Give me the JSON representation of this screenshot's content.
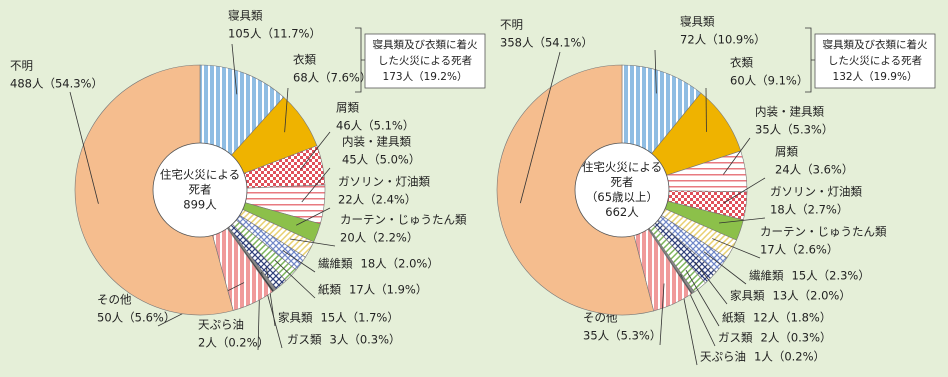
{
  "chart_data": [
    {
      "type": "pie",
      "center_label": [
        "住宅火災による",
        "死者",
        "899人"
      ],
      "annotation": [
        "寝具類及び衣類に着火",
        "した火災による死者",
        "173人（19.2%）"
      ],
      "categories": [
        "寝具類",
        "衣類",
        "屑類",
        "内装・建具類",
        "ガソリン・灯油類",
        "カーテン・じゅうたん類",
        "繊維類",
        "紙類",
        "家具類",
        "ガス類",
        "天ぷら油",
        "その他",
        "不明"
      ],
      "values": [
        105,
        68,
        46,
        45,
        22,
        20,
        18,
        17,
        15,
        3,
        2,
        50,
        488
      ],
      "value_labels": [
        "105人（11.7%）",
        "68人（7.6%）",
        "46人（5.1%）",
        "45人（5.0%）",
        "22人（2.4%）",
        "20人（2.2%）",
        "18人（2.0%）",
        "17人（1.9%）",
        "15人（1.7%）",
        "3人（0.3%）",
        "2人（0.2%）",
        "50人（5.6%）",
        "488人（54.3%）"
      ],
      "colors": [
        "#8fbde3",
        "#efb300",
        "#e0505a",
        "#e87a80",
        "#8cc04a",
        "#e8d070",
        "#6f86c8",
        "#7cb45a",
        "#2f3f7a",
        "#8a8a8a",
        "#333333",
        "#f09a9a",
        "#f5bd8e"
      ],
      "patterns": [
        "vstripe",
        "solid",
        "check",
        "hline",
        "solid",
        "diag",
        "crosshatch",
        "diag",
        "crosshatch",
        "solid",
        "solid",
        "vstripe",
        "solid"
      ]
    },
    {
      "type": "pie",
      "center_label": [
        "住宅火災による",
        "死者",
        "（65歳以上）",
        "662人"
      ],
      "annotation": [
        "寝具類及び衣類に着火",
        "した火災による死者",
        "132人（19.9%）"
      ],
      "categories": [
        "寝具類",
        "衣類",
        "内装・建具類",
        "屑類",
        "ガソリン・灯油類",
        "カーテン・じゅうたん類",
        "繊維類",
        "家具類",
        "紙類",
        "ガス類",
        "天ぷら油",
        "その他",
        "不明"
      ],
      "values": [
        72,
        60,
        35,
        24,
        18,
        17,
        15,
        13,
        12,
        2,
        1,
        35,
        358
      ],
      "value_labels": [
        "72人（10.9%）",
        "60人（9.1%）",
        "35人（5.3%）",
        "24人（3.6%）",
        "18人（2.7%）",
        "17人（2.6%）",
        "15人（2.3%）",
        "13人（2.0%）",
        "12人（1.8%）",
        "2人（0.3%）",
        "1人（0.2%）",
        "35人（5.3%）",
        "358人（54.1%）"
      ],
      "colors": [
        "#8fbde3",
        "#efb300",
        "#e87a80",
        "#e0505a",
        "#8cc04a",
        "#e8d070",
        "#6f86c8",
        "#2f3f7a",
        "#7cb45a",
        "#8a8a8a",
        "#333333",
        "#f09a9a",
        "#f5bd8e"
      ],
      "patterns": [
        "vstripe",
        "solid",
        "hline",
        "check",
        "solid",
        "diag",
        "crosshatch",
        "crosshatch",
        "diag",
        "solid",
        "solid",
        "vstripe",
        "solid"
      ]
    }
  ]
}
